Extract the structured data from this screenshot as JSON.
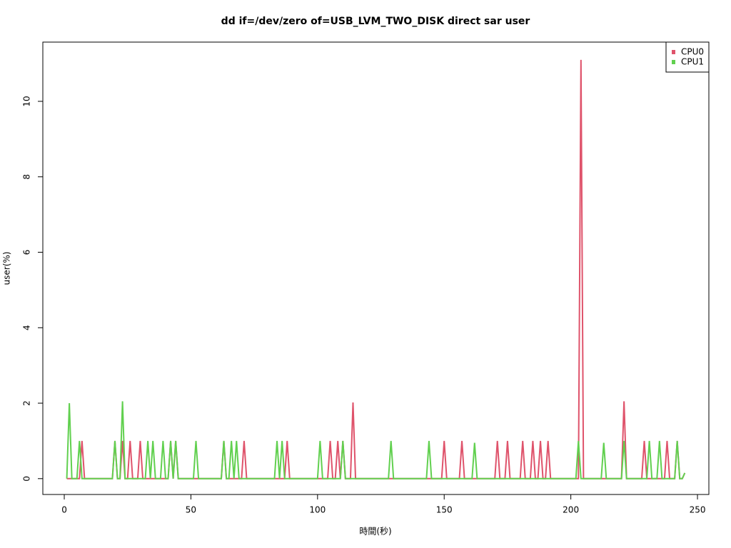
{
  "chart_data": {
    "type": "line",
    "title": "dd if=/dev/zero of=USB_LVM_TWO_DISK direct sar user",
    "xlabel": "時間(秒)",
    "ylabel": "user(%)",
    "x": [
      1,
      2,
      3,
      5,
      6,
      7,
      8,
      19,
      20,
      21,
      22,
      23,
      24,
      25,
      26,
      27,
      29,
      30,
      31,
      32,
      33,
      34,
      35,
      36,
      38,
      39,
      40,
      41,
      42,
      43,
      44,
      45,
      51,
      52,
      53,
      62,
      63,
      64,
      65,
      66,
      67,
      68,
      69,
      70,
      71,
      72,
      83,
      84,
      85,
      86,
      87,
      88,
      89,
      100,
      101,
      102,
      104,
      105,
      106,
      107,
      108,
      109,
      110,
      111,
      113,
      114,
      115,
      128,
      129,
      130,
      143,
      144,
      145,
      149,
      150,
      151,
      156,
      157,
      158,
      161,
      162,
      163,
      170,
      171,
      172,
      174,
      175,
      176,
      180,
      181,
      182,
      184,
      185,
      186,
      187,
      188,
      189,
      190,
      191,
      192,
      202,
      203,
      204,
      205,
      212,
      213,
      214,
      220,
      221,
      222,
      228,
      229,
      230,
      231,
      232,
      234,
      235,
      236,
      237,
      238,
      239,
      241,
      242,
      243,
      244,
      245
    ],
    "series": [
      {
        "name": "CPU0",
        "color": "#df536b",
        "values": [
          0,
          0,
          0,
          0,
          0,
          1,
          0,
          0,
          1,
          0,
          0,
          1,
          0,
          0,
          1,
          0,
          0,
          1,
          0,
          0,
          0,
          0,
          0,
          0,
          0,
          0,
          0,
          0,
          1,
          0,
          1,
          0,
          0,
          0,
          0,
          0,
          1,
          0,
          0,
          0,
          0,
          0,
          0,
          0,
          1,
          0,
          0,
          0,
          0,
          0,
          0,
          1,
          0,
          0,
          0,
          0,
          0,
          1,
          0,
          0,
          1,
          0,
          1,
          0,
          0,
          2.02,
          0,
          0,
          0,
          0,
          0,
          0,
          0,
          0,
          1,
          0,
          0,
          1,
          0,
          0,
          0,
          0,
          0,
          1,
          0,
          0,
          1,
          0,
          0,
          1,
          0,
          0,
          1,
          0,
          0,
          1,
          0,
          0,
          1,
          0,
          0,
          0,
          11.1,
          0,
          0,
          0,
          0,
          0,
          2.05,
          0,
          0,
          1,
          0,
          0,
          0,
          0,
          0,
          0,
          0,
          1,
          0,
          0,
          1,
          0,
          0,
          0.15
        ]
      },
      {
        "name": "CPU1",
        "color": "#61d04f",
        "values": [
          0,
          2,
          0,
          0,
          1,
          0,
          0,
          0,
          1,
          0,
          0,
          2.05,
          0,
          0,
          0,
          0,
          0,
          0,
          0,
          0,
          1,
          0,
          1,
          0,
          0,
          1,
          0,
          0,
          1,
          0,
          1,
          0,
          0,
          1,
          0,
          0,
          1,
          0,
          0,
          1,
          0,
          1,
          0,
          0,
          0,
          0,
          0,
          1,
          0,
          1,
          0,
          0,
          0,
          0,
          1,
          0,
          0,
          0,
          0,
          0,
          0,
          0,
          1,
          0,
          0,
          0,
          0,
          0,
          1,
          0,
          0,
          1,
          0,
          0,
          0,
          0,
          0,
          0,
          0,
          0,
          0.95,
          0,
          0,
          0,
          0,
          0,
          0,
          0,
          0,
          0,
          0,
          0,
          0,
          0,
          0,
          0,
          0,
          0,
          0,
          0,
          0,
          1,
          0,
          0,
          0,
          0.95,
          0,
          0,
          1,
          0,
          0,
          0,
          0,
          1,
          0,
          0,
          1,
          0,
          0,
          0,
          0,
          0,
          1,
          0,
          0,
          0.15
        ]
      }
    ],
    "xlim": [
      -8.46,
      254.5
    ],
    "ylim": [
      -0.42,
      11.57
    ],
    "xticks": [
      0,
      50,
      100,
      150,
      200,
      250
    ],
    "yticks": [
      0,
      2,
      4,
      6,
      8,
      10
    ],
    "legend": "top-right"
  }
}
